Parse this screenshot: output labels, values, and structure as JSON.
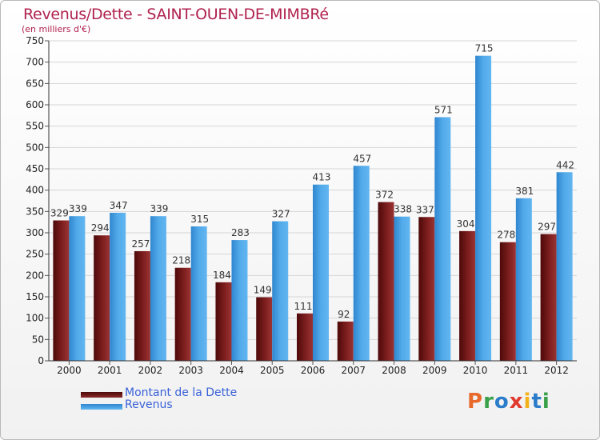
{
  "title": "Revenus/Dette - SAINT-OUEN-DE-MIMBRé",
  "subtitle": "(en milliers d'€)",
  "brand": {
    "text": "Proxiti",
    "colors": [
      "#e8692c",
      "#3aa14a",
      "#2b7cc9",
      "#e03a2f",
      "#f2b21a",
      "#2b7cc9",
      "#3aa14a"
    ]
  },
  "colors": {
    "debt": "#7a1c1c",
    "revenue": "#4aa3e6",
    "title": "#b0224f",
    "legend_text": "#3a62d8"
  },
  "chart_data": {
    "type": "bar",
    "categories": [
      "2000",
      "2001",
      "2002",
      "2003",
      "2004",
      "2005",
      "2006",
      "2007",
      "2008",
      "2009",
      "2010",
      "2011",
      "2012"
    ],
    "series": [
      {
        "name": "Montant de la Dette",
        "values": [
          329,
          294,
          257,
          218,
          184,
          149,
          111,
          92,
          372,
          337,
          304,
          278,
          297
        ]
      },
      {
        "name": "Revenus",
        "values": [
          339,
          347,
          339,
          315,
          283,
          327,
          413,
          457,
          338,
          571,
          715,
          381,
          442
        ]
      }
    ],
    "title": "Revenus/Dette - SAINT-OUEN-DE-MIMBRé",
    "ylim": [
      0,
      750
    ],
    "yticks": [
      0,
      50,
      100,
      150,
      200,
      250,
      300,
      350,
      400,
      450,
      500,
      550,
      600,
      650,
      700,
      750
    ],
    "grid": true,
    "legend": "bottom-left"
  }
}
